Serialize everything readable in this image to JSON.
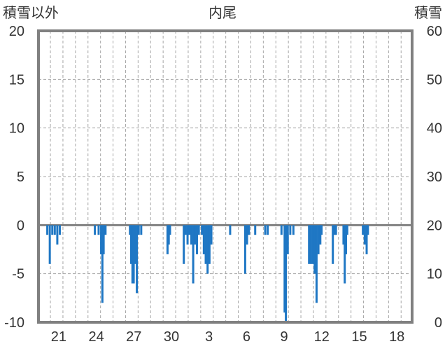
{
  "chart_data": {
    "type": "bar",
    "title": "内尾",
    "y_left_label": "積雪以外",
    "y_right_label": "積雪",
    "ylim_left": [
      -10,
      20
    ],
    "ylim_right": [
      0,
      60
    ],
    "yticks_left": [
      "20",
      "15",
      "10",
      "5",
      "0",
      "-5",
      "-10"
    ],
    "yticks_right": [
      "60",
      "50",
      "40",
      "30",
      "20",
      "10",
      "0"
    ],
    "x_tick_labels": [
      "21",
      "24",
      "27",
      "30",
      "3",
      "6",
      "9",
      "12",
      "15",
      "18"
    ],
    "grid": "dashed",
    "colors": {
      "bar": "#1f77c4",
      "frame": "#808080",
      "grid": "#a6a6a6",
      "zero_line": "#808080"
    },
    "series": [
      {
        "values": [
          {
            "x": 0.2,
            "y": -1
          },
          {
            "x": 0.4,
            "y": -4
          },
          {
            "x": 0.6,
            "y": -1
          },
          {
            "x": 0.8,
            "y": -1
          },
          {
            "x": 1.0,
            "y": -2
          },
          {
            "x": 1.2,
            "y": -1
          },
          {
            "x": 4.0,
            "y": -1
          },
          {
            "x": 4.3,
            "y": -1
          },
          {
            "x": 4.5,
            "y": -3
          },
          {
            "x": 4.6,
            "y": -8
          },
          {
            "x": 4.7,
            "y": -3
          },
          {
            "x": 4.85,
            "y": -1
          },
          {
            "x": 6.8,
            "y": -1
          },
          {
            "x": 6.9,
            "y": -4
          },
          {
            "x": 7.0,
            "y": -6
          },
          {
            "x": 7.1,
            "y": -6
          },
          {
            "x": 7.2,
            "y": -4
          },
          {
            "x": 7.35,
            "y": -7
          },
          {
            "x": 7.5,
            "y": -1
          },
          {
            "x": 7.7,
            "y": -1
          },
          {
            "x": 9.8,
            "y": -3
          },
          {
            "x": 9.9,
            "y": -2
          },
          {
            "x": 10.0,
            "y": -1
          },
          {
            "x": 11.1,
            "y": -4
          },
          {
            "x": 11.25,
            "y": -1
          },
          {
            "x": 11.4,
            "y": -2
          },
          {
            "x": 11.55,
            "y": -1
          },
          {
            "x": 11.7,
            "y": -2
          },
          {
            "x": 11.85,
            "y": -6
          },
          {
            "x": 12.0,
            "y": -2
          },
          {
            "x": 12.15,
            "y": -3
          },
          {
            "x": 12.3,
            "y": -1
          },
          {
            "x": 12.55,
            "y": -1
          },
          {
            "x": 12.7,
            "y": -3
          },
          {
            "x": 12.85,
            "y": -4
          },
          {
            "x": 13.0,
            "y": -5
          },
          {
            "x": 13.15,
            "y": -4
          },
          {
            "x": 13.3,
            "y": -2
          },
          {
            "x": 14.8,
            "y": -1
          },
          {
            "x": 16.0,
            "y": -5
          },
          {
            "x": 16.15,
            "y": -2
          },
          {
            "x": 16.3,
            "y": -1
          },
          {
            "x": 16.8,
            "y": -1
          },
          {
            "x": 17.6,
            "y": -1
          },
          {
            "x": 17.8,
            "y": -1
          },
          {
            "x": 18.9,
            "y": -1
          },
          {
            "x": 19.15,
            "y": -9
          },
          {
            "x": 19.25,
            "y": -10
          },
          {
            "x": 19.4,
            "y": -3
          },
          {
            "x": 19.6,
            "y": -1
          },
          {
            "x": 19.85,
            "y": -1
          },
          {
            "x": 21.1,
            "y": -4
          },
          {
            "x": 21.25,
            "y": -4
          },
          {
            "x": 21.4,
            "y": -4
          },
          {
            "x": 21.55,
            "y": -5
          },
          {
            "x": 21.7,
            "y": -8
          },
          {
            "x": 21.85,
            "y": -3
          },
          {
            "x": 22.0,
            "y": -2
          },
          {
            "x": 22.1,
            "y": -1
          },
          {
            "x": 23.0,
            "y": -4
          },
          {
            "x": 23.15,
            "y": -1
          },
          {
            "x": 23.25,
            "y": -1
          },
          {
            "x": 23.85,
            "y": -2
          },
          {
            "x": 23.95,
            "y": -6
          },
          {
            "x": 24.05,
            "y": -3
          },
          {
            "x": 24.15,
            "y": -1
          },
          {
            "x": 25.4,
            "y": -1
          },
          {
            "x": 25.55,
            "y": -2
          },
          {
            "x": 25.7,
            "y": -3
          },
          {
            "x": 25.8,
            "y": -1
          }
        ]
      }
    ]
  }
}
